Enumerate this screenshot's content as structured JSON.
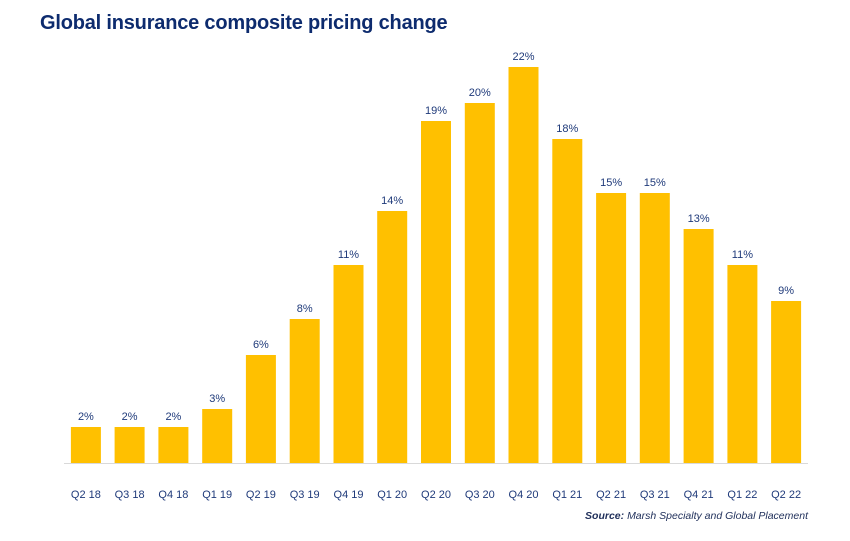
{
  "colors": {
    "bar": "#FFC000",
    "title": "#0D2B6E",
    "label": "#1F3A7A",
    "axis": "#D9D9D9"
  },
  "chart_data": {
    "type": "bar",
    "title": "Global insurance composite pricing change",
    "xlabel": "",
    "ylabel": "",
    "ylim": [
      0,
      23
    ],
    "grid": false,
    "categories": [
      "Q2 18",
      "Q3 18",
      "Q4 18",
      "Q1 19",
      "Q2 19",
      "Q3 19",
      "Q4 19",
      "Q1 20",
      "Q2 20",
      "Q3 20",
      "Q4 20",
      "Q1 21",
      "Q2 21",
      "Q3 21",
      "Q4 21",
      "Q1 22",
      "Q2 22"
    ],
    "values": [
      2,
      2,
      2,
      3,
      6,
      8,
      11,
      14,
      19,
      20,
      22,
      18,
      15,
      15,
      13,
      11,
      9
    ],
    "data_labels": [
      "2%",
      "2%",
      "2%",
      "3%",
      "6%",
      "8%",
      "11%",
      "14%",
      "19%",
      "20%",
      "22%",
      "18%",
      "15%",
      "15%",
      "13%",
      "11%",
      "9%"
    ]
  },
  "source": {
    "label": "Source:",
    "text": "Marsh Specialty and Global Placement"
  }
}
